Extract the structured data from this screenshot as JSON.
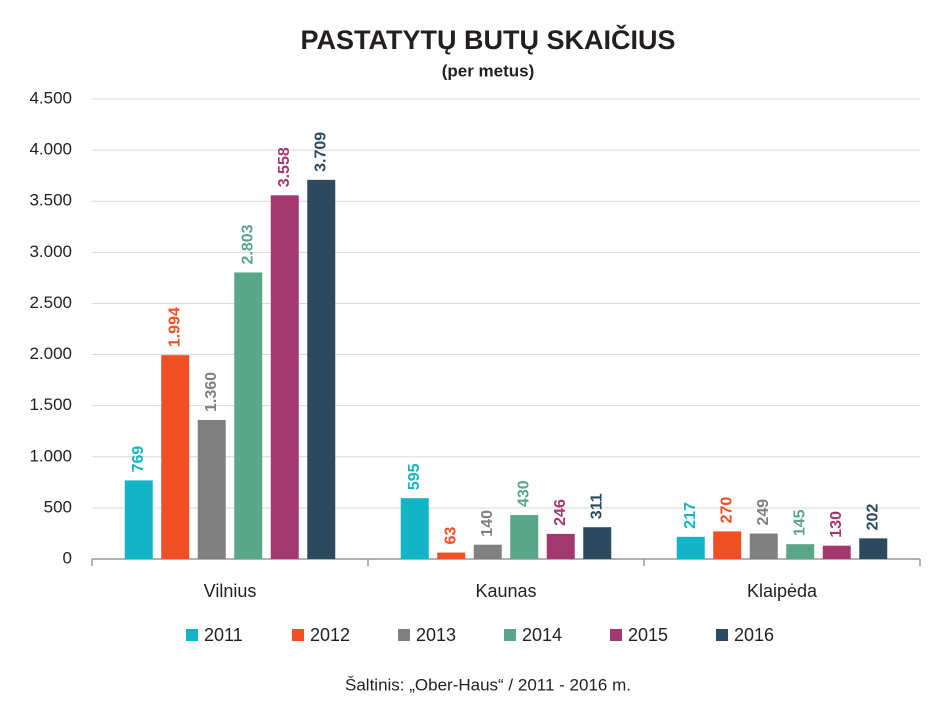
{
  "chart_data": {
    "type": "bar",
    "title": "PASTATYTŲ BUTŲ SKAIČIUS",
    "subtitle": "(per metus)",
    "categories": [
      "Vilnius",
      "Kaunas",
      "Klaipėda"
    ],
    "series": [
      {
        "name": "2011",
        "color": "#12b5c5",
        "values": [
          769,
          595,
          217
        ],
        "value_labels": [
          "769",
          "595",
          "217"
        ]
      },
      {
        "name": "2012",
        "color": "#f04e23",
        "values": [
          1994,
          63,
          270
        ],
        "value_labels": [
          "1.994",
          "63",
          "270"
        ]
      },
      {
        "name": "2013",
        "color": "#808080",
        "values": [
          1360,
          140,
          249
        ],
        "value_labels": [
          "1.360",
          "140",
          "249"
        ]
      },
      {
        "name": "2014",
        "color": "#5aa688",
        "values": [
          2803,
          430,
          145
        ],
        "value_labels": [
          "2.803",
          "430",
          "145"
        ]
      },
      {
        "name": "2015",
        "color": "#a3386e",
        "values": [
          3558,
          246,
          130
        ],
        "value_labels": [
          "3.558",
          "246",
          "130"
        ]
      },
      {
        "name": "2016",
        "color": "#2b4a5f",
        "values": [
          3709,
          311,
          202
        ],
        "value_labels": [
          "3.709",
          "311",
          "202"
        ]
      }
    ],
    "ylim": [
      0,
      4500
    ],
    "yticks": [
      0,
      500,
      {
        "value": 1000,
        "label": "1.000"
      },
      {
        "value": 1500,
        "label": "1.500"
      },
      {
        "value": 2000,
        "label": "2.000"
      },
      {
        "value": 2500,
        "label": "2.500"
      },
      {
        "value": 3000,
        "label": "3.000"
      },
      {
        "value": 3500,
        "label": "3.500"
      },
      {
        "value": 4000,
        "label": "4.000"
      },
      {
        "value": 4500,
        "label": "4.500"
      }
    ],
    "grid": true,
    "legend": "bottom",
    "source": "Šaltinis: „Ober-Haus“ / 2011 - 2016 m."
  }
}
